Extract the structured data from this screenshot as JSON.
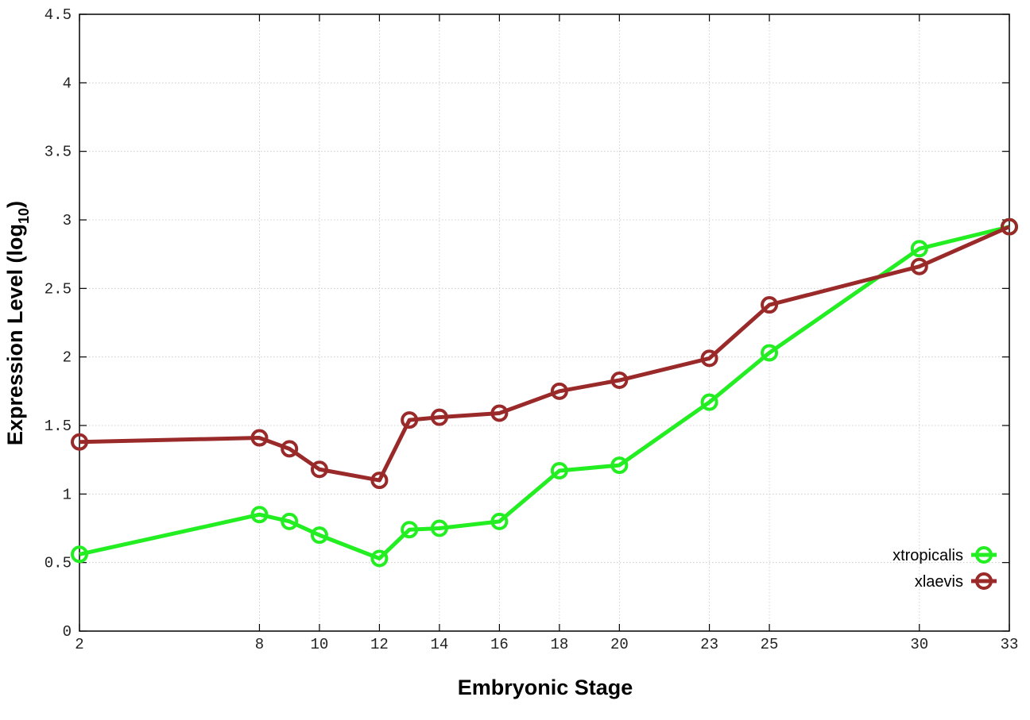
{
  "chart_data": {
    "type": "line",
    "xlabel": "Embryonic Stage",
    "ylabel": {
      "main": "Expression Level (log",
      "sub": "10",
      "close": ")"
    },
    "x": [
      2,
      8,
      9,
      10,
      12,
      13,
      14,
      16,
      18,
      20,
      23,
      25,
      30,
      33
    ],
    "x_ticks": [
      2,
      8,
      10,
      12,
      14,
      16,
      18,
      20,
      23,
      25,
      30,
      33
    ],
    "y_ticks": [
      "0",
      "0.5",
      "1",
      "1.5",
      "2",
      "2.5",
      "3",
      "3.5",
      "4",
      "4.5"
    ],
    "xlim": [
      2,
      33
    ],
    "ylim": [
      0,
      4.5
    ],
    "grid": true,
    "legend_position": "bottom-right",
    "series": [
      {
        "name": "xtropicalis",
        "color": "#22ee22",
        "values": [
          0.56,
          0.85,
          0.8,
          0.7,
          0.53,
          0.74,
          0.75,
          0.8,
          1.17,
          1.21,
          1.67,
          2.03,
          2.79,
          2.95
        ]
      },
      {
        "name": "xlaevis",
        "color": "#9a2a2a",
        "values": [
          1.38,
          1.41,
          1.33,
          1.18,
          1.1,
          1.54,
          1.56,
          1.59,
          1.75,
          1.83,
          1.99,
          2.38,
          2.66,
          2.95
        ]
      }
    ]
  }
}
